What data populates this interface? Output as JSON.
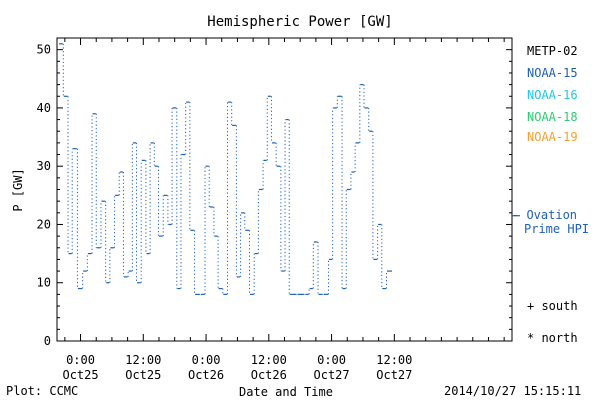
{
  "chart_data": {
    "type": "line",
    "title": "Hemispheric Power [GW]",
    "xlabel": "Date and Time",
    "ylabel": "P [GW]",
    "ylim": [
      0,
      52
    ],
    "yticks": [
      0,
      10,
      20,
      30,
      40,
      50
    ],
    "xlim_hours": [
      -4.5,
      82.5
    ],
    "x_ticks": [
      {
        "hour": 0,
        "time": "0:00",
        "date": "Oct25"
      },
      {
        "hour": 12,
        "time": "12:00",
        "date": "Oct25"
      },
      {
        "hour": 24,
        "time": "0:00",
        "date": "Oct26"
      },
      {
        "hour": 36,
        "time": "12:00",
        "date": "Oct26"
      },
      {
        "hour": 48,
        "time": "0:00",
        "date": "Oct27"
      },
      {
        "hour": 60,
        "time": "12:00",
        "date": "Oct27"
      }
    ],
    "series": [
      {
        "name": "NOAA-15",
        "color": "#1f5fb8",
        "style": "dotted-step",
        "points": [
          [
            -4.1,
            51
          ],
          [
            -3.2,
            42
          ],
          [
            -2.3,
            15
          ],
          [
            -1.5,
            33
          ],
          [
            -0.5,
            9
          ],
          [
            0.5,
            12
          ],
          [
            1.4,
            15
          ],
          [
            2.3,
            39
          ],
          [
            3.1,
            16
          ],
          [
            4.0,
            24
          ],
          [
            4.9,
            10
          ],
          [
            5.7,
            16
          ],
          [
            6.6,
            25
          ],
          [
            7.5,
            29
          ],
          [
            8.3,
            11
          ],
          [
            9.2,
            12
          ],
          [
            10.0,
            34
          ],
          [
            10.8,
            10
          ],
          [
            11.7,
            31
          ],
          [
            12.6,
            15
          ],
          [
            13.4,
            34
          ],
          [
            14.2,
            30
          ],
          [
            15.0,
            18
          ],
          [
            15.9,
            25
          ],
          [
            16.8,
            20
          ],
          [
            17.6,
            40
          ],
          [
            18.5,
            9
          ],
          [
            19.3,
            32
          ],
          [
            20.2,
            41
          ],
          [
            21.0,
            19
          ],
          [
            21.9,
            8
          ],
          [
            23.0,
            8
          ],
          [
            23.9,
            30
          ],
          [
            24.7,
            23
          ],
          [
            25.6,
            18
          ],
          [
            26.4,
            9
          ],
          [
            27.3,
            8
          ],
          [
            28.2,
            41
          ],
          [
            29.0,
            37
          ],
          [
            29.9,
            11
          ],
          [
            30.7,
            22
          ],
          [
            31.5,
            19
          ],
          [
            32.4,
            8
          ],
          [
            33.3,
            15
          ],
          [
            34.1,
            26
          ],
          [
            35.0,
            31
          ],
          [
            35.8,
            42
          ],
          [
            36.6,
            34
          ],
          [
            37.5,
            30
          ],
          [
            38.4,
            12
          ],
          [
            39.2,
            38
          ],
          [
            40.0,
            8
          ],
          [
            41.5,
            8
          ],
          [
            43.0,
            8
          ],
          [
            43.8,
            9
          ],
          [
            44.6,
            17
          ],
          [
            45.5,
            8
          ],
          [
            46.5,
            8
          ],
          [
            47.5,
            14
          ],
          [
            48.3,
            40
          ],
          [
            49.2,
            42
          ],
          [
            50.1,
            9
          ],
          [
            50.9,
            26
          ],
          [
            51.8,
            29
          ],
          [
            52.6,
            34
          ],
          [
            53.5,
            44
          ],
          [
            54.3,
            40
          ],
          [
            55.2,
            36
          ],
          [
            56.0,
            14
          ],
          [
            56.9,
            20
          ],
          [
            57.7,
            9
          ],
          [
            58.6,
            12
          ]
        ]
      }
    ],
    "legend": [
      "METP-02",
      "NOAA-15",
      "NOAA-16",
      "NOAA-18",
      "NOAA-19"
    ],
    "legend_colors": [
      "#000000",
      "#1f5fb8",
      "#1ec8e6",
      "#2ecc71",
      "#f0a030"
    ],
    "ovation_label": [
      "- Ovation",
      "Prime HPI"
    ],
    "ovation_color": "#1f5fb8",
    "markers": [
      "+ south",
      "* north"
    ],
    "footer_left": "Plot: CCMC",
    "footer_right": "2014/10/27 15:15:11"
  }
}
